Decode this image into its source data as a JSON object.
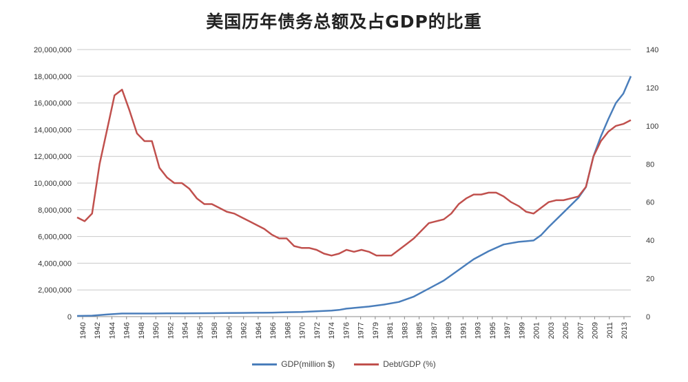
{
  "chart_data": {
    "type": "line",
    "title": "美国历年债务总额及占GDP的比重",
    "x_tick_labels": [
      "1940",
      "1942",
      "1944",
      "1946",
      "1948",
      "1950",
      "1952",
      "1954",
      "1956",
      "1958",
      "1960",
      "1962",
      "1964",
      "1966",
      "1968",
      "1970",
      "1972",
      "1974",
      "1976",
      "1977",
      "1979",
      "1981",
      "1983",
      "1985",
      "1987",
      "1989",
      "1991",
      "1993",
      "1995",
      "1997",
      "1999",
      "2001",
      "2003",
      "2005",
      "2007",
      "2009",
      "2011",
      "2013"
    ],
    "x_range": [
      1940,
      2014
    ],
    "y_left": {
      "range": [
        0,
        20000000
      ],
      "ticks": [
        "0",
        "2,000,000",
        "4,000,000",
        "6,000,000",
        "8,000,000",
        "10,000,000",
        "12,000,000",
        "14,000,000",
        "16,000,000",
        "18,000,000",
        "20,000,000"
      ]
    },
    "y_right": {
      "range": [
        0,
        140
      ],
      "ticks": [
        "0",
        "20",
        "40",
        "60",
        "80",
        "100",
        "120",
        "140"
      ]
    },
    "grid": true,
    "legend_position": "bottom",
    "series": [
      {
        "name": "GDP(million $)",
        "axis": "left",
        "color": "#4a7ebb",
        "points": [
          [
            1940,
            50000
          ],
          [
            1942,
            70000
          ],
          [
            1944,
            160000
          ],
          [
            1946,
            230000
          ],
          [
            1948,
            230000
          ],
          [
            1950,
            230000
          ],
          [
            1952,
            240000
          ],
          [
            1954,
            240000
          ],
          [
            1956,
            250000
          ],
          [
            1958,
            260000
          ],
          [
            1960,
            270000
          ],
          [
            1962,
            280000
          ],
          [
            1964,
            290000
          ],
          [
            1966,
            300000
          ],
          [
            1968,
            330000
          ],
          [
            1970,
            350000
          ],
          [
            1972,
            400000
          ],
          [
            1974,
            450000
          ],
          [
            1975,
            500000
          ],
          [
            1976,
            600000
          ],
          [
            1977,
            650000
          ],
          [
            1979,
            750000
          ],
          [
            1981,
            900000
          ],
          [
            1983,
            1100000
          ],
          [
            1985,
            1500000
          ],
          [
            1987,
            2100000
          ],
          [
            1989,
            2700000
          ],
          [
            1991,
            3500000
          ],
          [
            1993,
            4300000
          ],
          [
            1995,
            4900000
          ],
          [
            1997,
            5400000
          ],
          [
            1999,
            5600000
          ],
          [
            2001,
            5700000
          ],
          [
            2002,
            6100000
          ],
          [
            2003,
            6700000
          ],
          [
            2005,
            7800000
          ],
          [
            2007,
            8900000
          ],
          [
            2008,
            9700000
          ],
          [
            2009,
            12000000
          ],
          [
            2010,
            13500000
          ],
          [
            2011,
            14800000
          ],
          [
            2012,
            16000000
          ],
          [
            2013,
            16700000
          ],
          [
            2014,
            18000000
          ]
        ]
      },
      {
        "name": "Debt/GDP (%)",
        "axis": "right",
        "color": "#c0504d",
        "points": [
          [
            1940,
            52
          ],
          [
            1941,
            50
          ],
          [
            1942,
            54
          ],
          [
            1943,
            80
          ],
          [
            1944,
            98
          ],
          [
            1945,
            116
          ],
          [
            1946,
            119
          ],
          [
            1947,
            108
          ],
          [
            1948,
            96
          ],
          [
            1949,
            92
          ],
          [
            1950,
            92
          ],
          [
            1951,
            78
          ],
          [
            1952,
            73
          ],
          [
            1953,
            70
          ],
          [
            1954,
            70
          ],
          [
            1955,
            67
          ],
          [
            1956,
            62
          ],
          [
            1957,
            59
          ],
          [
            1958,
            59
          ],
          [
            1959,
            57
          ],
          [
            1960,
            55
          ],
          [
            1961,
            54
          ],
          [
            1962,
            52
          ],
          [
            1963,
            50
          ],
          [
            1964,
            48
          ],
          [
            1965,
            46
          ],
          [
            1966,
            43
          ],
          [
            1967,
            41
          ],
          [
            1968,
            41
          ],
          [
            1969,
            37
          ],
          [
            1970,
            36
          ],
          [
            1971,
            36
          ],
          [
            1972,
            35
          ],
          [
            1973,
            33
          ],
          [
            1974,
            32
          ],
          [
            1975,
            33
          ],
          [
            1976,
            35
          ],
          [
            1977,
            34
          ],
          [
            1978,
            35
          ],
          [
            1979,
            34
          ],
          [
            1980,
            32
          ],
          [
            1981,
            32
          ],
          [
            1982,
            32
          ],
          [
            1983,
            35
          ],
          [
            1984,
            38
          ],
          [
            1985,
            41
          ],
          [
            1986,
            45
          ],
          [
            1987,
            49
          ],
          [
            1988,
            50
          ],
          [
            1989,
            51
          ],
          [
            1990,
            54
          ],
          [
            1991,
            59
          ],
          [
            1992,
            62
          ],
          [
            1993,
            64
          ],
          [
            1994,
            64
          ],
          [
            1995,
            65
          ],
          [
            1996,
            65
          ],
          [
            1997,
            63
          ],
          [
            1998,
            60
          ],
          [
            1999,
            58
          ],
          [
            2000,
            55
          ],
          [
            2001,
            54
          ],
          [
            2002,
            57
          ],
          [
            2003,
            60
          ],
          [
            2004,
            61
          ],
          [
            2005,
            61
          ],
          [
            2006,
            62
          ],
          [
            2007,
            63
          ],
          [
            2008,
            68
          ],
          [
            2009,
            84
          ],
          [
            2010,
            92
          ],
          [
            2011,
            97
          ],
          [
            2012,
            100
          ],
          [
            2013,
            101
          ],
          [
            2014,
            103
          ]
        ]
      }
    ]
  }
}
